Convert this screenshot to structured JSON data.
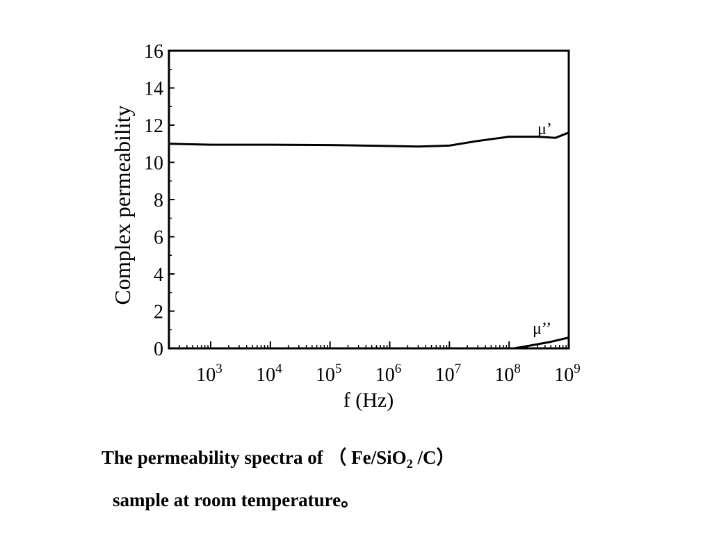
{
  "chart_data": {
    "type": "line",
    "xlabel": "f (Hz)",
    "ylabel": "Complex permeability",
    "x_scale": "log",
    "xlim": [
      200,
      1000000000
    ],
    "ylim": [
      0,
      16
    ],
    "grid": false,
    "x_ticks": [
      {
        "exp": "3",
        "value": 1000
      },
      {
        "exp": "4",
        "value": 10000
      },
      {
        "exp": "5",
        "value": 100000
      },
      {
        "exp": "6",
        "value": 1000000
      },
      {
        "exp": "7",
        "value": 10000000
      },
      {
        "exp": "8",
        "value": 100000000
      },
      {
        "exp": "9",
        "value": 1000000000
      }
    ],
    "x_tick_base": "10",
    "y_ticks": [
      "0",
      "2",
      "4",
      "6",
      "8",
      "10",
      "12",
      "14",
      "16"
    ],
    "series": [
      {
        "name": "μ’",
        "points": [
          [
            200,
            11.0
          ],
          [
            1000,
            10.95
          ],
          [
            10000,
            10.95
          ],
          [
            100000,
            10.93
          ],
          [
            1000000,
            10.88
          ],
          [
            3000000,
            10.85
          ],
          [
            10000000,
            10.9
          ],
          [
            30000000,
            11.15
          ],
          [
            100000000,
            11.38
          ],
          [
            300000000,
            11.38
          ],
          [
            600000000,
            11.32
          ],
          [
            1000000000,
            11.6
          ]
        ]
      },
      {
        "name": "μ’’",
        "points": [
          [
            120000000,
            0.0
          ],
          [
            200000000,
            0.12
          ],
          [
            500000000,
            0.35
          ],
          [
            1000000000,
            0.58
          ]
        ]
      }
    ]
  },
  "caption": {
    "line1_pre": "The permeability spectra of （ Fe/SiO",
    "line1_sub": "2",
    "line1_post": " /C）",
    "line2": "sample at room temperature。"
  }
}
